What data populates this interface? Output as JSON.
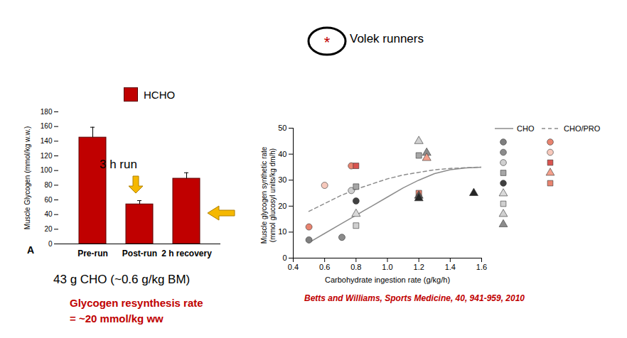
{
  "chart_data": [
    {
      "type": "bar",
      "panel": "A",
      "categories": [
        "Pre-run",
        "Post-run",
        "2 h recovery"
      ],
      "series": [
        {
          "name": "HCHO",
          "color": "#c00000",
          "values": [
            145,
            54,
            89
          ],
          "errors": [
            14,
            5,
            8
          ]
        }
      ],
      "ylabel": "Muscle Glycogen (mmol/kg w.w.)",
      "ylim": [
        0,
        180
      ],
      "yticks": [
        0,
        20,
        40,
        60,
        80,
        100,
        120,
        140,
        160,
        180
      ],
      "legend": "top",
      "annotations": [
        "3 h run",
        "43 g CHO (~0.6 g/kg BM)",
        "Glycogen resynthesis rate",
        "= ~20 mmol/kg ww"
      ]
    },
    {
      "type": "scatter",
      "xlabel": "Carbohydrate ingestion rate (g/kg/h)",
      "ylabel": [
        "Muscle glycogen synthetic rate",
        "(mmol glucosyl units/kg dm/h)"
      ],
      "xlim": [
        0.4,
        1.6
      ],
      "xticks": [
        0.4,
        0.6,
        0.8,
        {
          "value": 1,
          "label": "1.0"
        },
        1.2,
        1.4,
        1.6
      ],
      "ylim": [
        0,
        50
      ],
      "yticks": [
        0,
        10,
        20,
        30,
        40,
        50
      ],
      "legend": "right",
      "series": [
        {
          "name": "CHO",
          "type": "line",
          "line_style": "solid",
          "color": "#8c8c8c",
          "x": [
            0.5,
            0.6,
            0.7,
            0.8,
            0.9,
            1.0,
            1.1,
            1.2,
            1.3,
            1.4,
            1.5,
            1.6
          ],
          "values": [
            6,
            9.5,
            13,
            16.5,
            20,
            23.5,
            27,
            30,
            32.5,
            34,
            34.7,
            35
          ]
        },
        {
          "name": "CHO/PRO",
          "type": "line",
          "line_style": "dashed",
          "color": "#8c8c8c",
          "x": [
            0.5,
            0.6,
            0.7,
            0.8,
            0.9,
            1.0,
            1.1,
            1.2,
            1.3,
            1.4,
            1.5,
            1.6
          ],
          "values": [
            18,
            21,
            24,
            26.5,
            28.5,
            30.5,
            32,
            33,
            34,
            34.5,
            34.8,
            35
          ]
        },
        {
          "type": "scatter",
          "x": [
            0.5,
            0.71,
            0.77,
            0.8,
            0.8,
            0.8,
            0.8,
            1.2,
            1.2,
            1.25,
            1.2,
            1.2,
            1.55
          ],
          "values": [
            7,
            8,
            26,
            27.5,
            22,
            17,
            12.5,
            45,
            39.5,
            40.5,
            24,
            23,
            25
          ],
          "markers": [
            "circle",
            "circle",
            "circle",
            "square",
            "circle",
            "triangle",
            "square",
            "triangle",
            "square",
            "triangle",
            "triangle",
            "triangle",
            "triangle"
          ],
          "colors": [
            "#7f7f7f",
            "#8c8c8c",
            "#d0d0d0",
            "#a6a6a6",
            "#404040",
            "#d9d9d9",
            "#d0d0d0",
            "#d0d0d0",
            "#a6a6a6",
            "#8c8c8c",
            "#595959",
            "#262626",
            "#262626"
          ]
        },
        {
          "type": "scatter",
          "x": [
            0.5,
            0.6,
            0.77,
            0.8,
            1.25,
            1.2
          ],
          "values": [
            12,
            28,
            35.5,
            35.5,
            38.5,
            25
          ],
          "markers": [
            "circle",
            "circle",
            "circle",
            "square",
            "triangle",
            "square"
          ],
          "colors": [
            "#e8836f",
            "#f7c9bc",
            "#e8836f",
            "#d9534f",
            "#f4a08c",
            "#e8836f"
          ]
        }
      ],
      "volek": {
        "symbol": "*",
        "label": "Volek runners"
      },
      "source": "Betts and Williams, Sports Medicine, 40, 941-959, 2010"
    }
  ]
}
